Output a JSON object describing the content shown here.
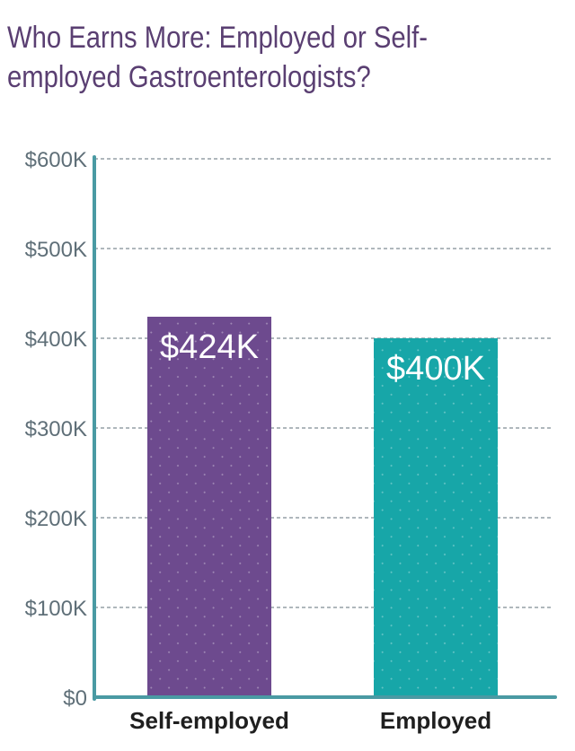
{
  "chart_data": {
    "type": "bar",
    "title": "Who Earns More: Employed or Self-employed Gastroenterologists?",
    "categories": [
      "Self-employed",
      "Employed"
    ],
    "values": [
      424,
      400
    ],
    "data_labels": [
      "$424K",
      "$400K"
    ],
    "tick_values": [
      0,
      100,
      200,
      300,
      400,
      500,
      600
    ],
    "tick_labels": [
      "$0",
      "$100K",
      "$200K",
      "$300K",
      "$400K",
      "$500K",
      "$600K"
    ],
    "ylim": [
      0,
      600
    ],
    "grid": true,
    "colors": [
      "#6d4a8e",
      "#17a6a8"
    ],
    "axis_color": "#4a9aa3",
    "title_color": "#5a3f72",
    "xlabel": "",
    "ylabel": ""
  }
}
